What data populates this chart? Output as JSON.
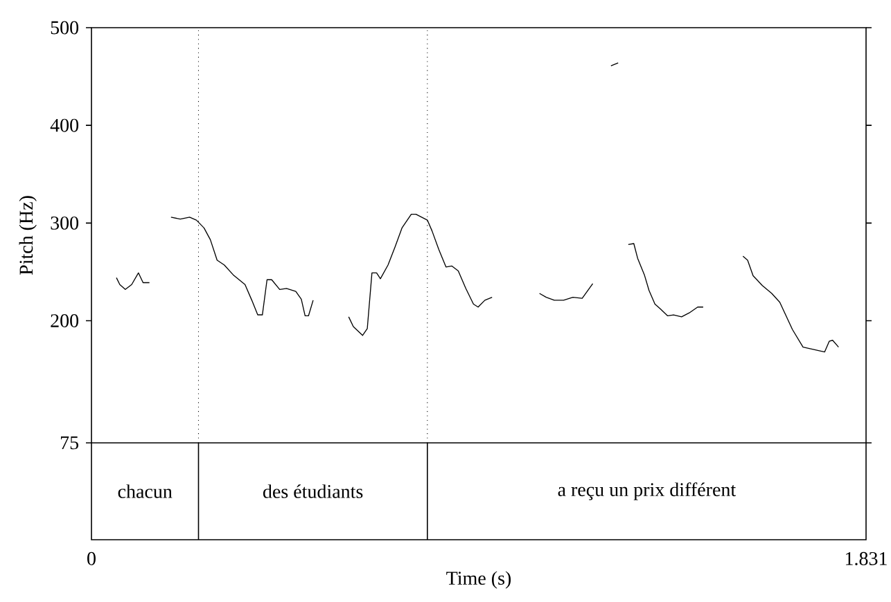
{
  "chart_data": {
    "type": "line",
    "xlabel": "Time (s)",
    "ylabel": "Pitch (Hz)",
    "xlim": [
      0,
      1.831
    ],
    "ylim": [
      75,
      500
    ],
    "xticks": [
      0,
      1.831
    ],
    "yticks": [
      75,
      200,
      300,
      400,
      500
    ],
    "x": [
      0.059,
      0.067,
      0.08,
      0.095,
      0.111,
      0.122,
      0.137,
      0.16,
      0.188,
      0.21,
      0.232,
      0.248,
      0.266,
      0.281,
      0.297,
      0.314,
      0.335,
      0.363,
      0.379,
      0.393,
      0.404,
      0.415,
      0.426,
      0.445,
      0.461,
      0.483,
      0.496,
      0.505,
      0.513,
      0.524,
      0.56,
      0.608,
      0.619,
      0.641,
      0.652,
      0.663,
      0.674,
      0.683,
      0.701,
      0.718,
      0.734,
      0.756,
      0.767,
      0.794,
      0.805,
      0.821,
      0.838,
      0.852,
      0.867,
      0.885,
      0.903,
      0.914,
      0.93,
      0.947,
      1.0,
      1.059,
      1.075,
      1.094,
      1.116,
      1.138,
      1.16,
      1.185,
      1.21,
      1.228,
      1.245,
      1.26,
      1.269,
      1.282,
      1.291,
      1.307,
      1.318,
      1.332,
      1.345,
      1.362,
      1.376,
      1.395,
      1.413,
      1.433,
      1.446,
      1.5,
      1.54,
      1.551,
      1.564,
      1.586,
      1.608,
      1.627,
      1.657,
      1.682,
      1.733,
      1.744,
      1.752,
      1.766
    ],
    "series": [
      {
        "color": "#000000",
        "values": [
          244,
          237,
          232,
          237,
          249,
          239,
          239,
          null,
          306,
          304,
          306,
          303,
          295,
          283,
          262,
          257,
          247,
          237,
          221,
          206,
          206,
          242,
          242,
          232,
          233,
          230,
          222,
          205,
          205,
          221,
          null,
          204,
          194,
          185,
          192,
          249,
          249,
          243,
          257,
          276,
          295,
          309,
          309,
          303,
          292,
          273,
          255,
          256,
          251,
          233,
          217,
          214,
          221,
          224,
          null,
          228,
          224,
          221,
          221,
          224,
          223,
          238,
          null,
          461,
          464,
          null,
          278,
          279,
          264,
          247,
          231,
          217,
          212,
          205,
          206,
          204,
          208,
          214,
          214,
          null,
          266,
          262,
          246,
          236,
          228,
          219,
          191,
          173,
          168,
          179,
          180,
          173
        ]
      }
    ],
    "ref_lines": [
      {
        "axis": "x",
        "value": 0.253,
        "line_style": "dotted"
      },
      {
        "axis": "x",
        "value": 0.794,
        "line_style": "dotted"
      }
    ],
    "annotations": [
      "chacun",
      "des étudiants",
      "a reçu un prix différent"
    ]
  }
}
